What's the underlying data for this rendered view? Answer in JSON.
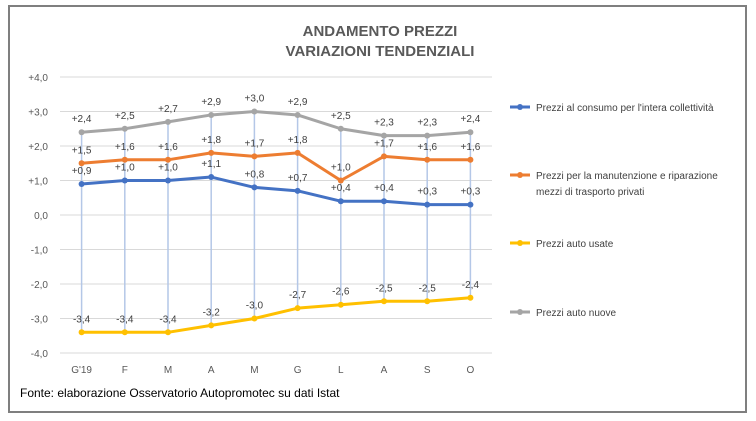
{
  "chart_data": {
    "type": "line",
    "title": [
      "ANDAMENTO PREZZI",
      "VARIAZIONI TENDENZIALI"
    ],
    "categories": [
      "G'19",
      "F",
      "M",
      "A",
      "M",
      "G",
      "L",
      "A",
      "S",
      "O"
    ],
    "ylim": [
      -4,
      4
    ],
    "yticks": [
      "+4,0",
      "+3,0",
      "+2,0",
      "+1,0",
      "0,0",
      "-1,0",
      "-2,0",
      "-3,0",
      "-4,0"
    ],
    "grid": true,
    "legend_position": "right",
    "high_low_lines": true,
    "series": [
      {
        "name": "Prezzi al consumo per l'intera collettività",
        "color": "#4472c4",
        "values": [
          0.9,
          1.0,
          1.0,
          1.1,
          0.8,
          0.7,
          0.4,
          0.4,
          0.3,
          0.3
        ],
        "labels": [
          "+0,9",
          "+1,0",
          "+1,0",
          "+1,1",
          "+0,8",
          "+0,7",
          "+0,4",
          "+0,4",
          "+0,3",
          "+0,3"
        ]
      },
      {
        "name": "Prezzi per la manutenzione e riparazione mezzi di trasporto privati",
        "color": "#ed7d31",
        "values": [
          1.5,
          1.6,
          1.6,
          1.8,
          1.7,
          1.8,
          1.0,
          1.7,
          1.6,
          1.6
        ],
        "labels": [
          "+1,5",
          "+1,6",
          "+1,6",
          "+1,8",
          "+1,7",
          "+1,8",
          "+1,0",
          "+1,7",
          "+1,6",
          "+1,6"
        ]
      },
      {
        "name": "Prezzi auto usate",
        "color": "#ffc000",
        "values": [
          -3.4,
          -3.4,
          -3.4,
          -3.2,
          -3.0,
          -2.7,
          -2.6,
          -2.5,
          -2.5,
          -2.4
        ],
        "labels": [
          "-3,4",
          "-3,4",
          "-3,4",
          "-3,2",
          "-3,0",
          "-2,7",
          "-2,6",
          "-2,5",
          "-2,5",
          "-2,4"
        ]
      },
      {
        "name": "Prezzi auto nuove",
        "color": "#a5a5a5",
        "values": [
          2.4,
          2.5,
          2.7,
          2.9,
          3.0,
          2.9,
          2.5,
          2.3,
          2.3,
          2.4
        ],
        "labels": [
          "+2,4",
          "+2,5",
          "+2,7",
          "+2,9",
          "+3,0",
          "+2,9",
          "+2,5",
          "+2,3",
          "+2,3",
          "+2,4"
        ]
      }
    ],
    "legend_lines": [
      [
        "Prezzi al consumo per l'intera collettività"
      ],
      [
        "Prezzi per la manutenzione e riparazione",
        "mezzi di trasporto privati"
      ],
      [
        "Prezzi auto usate"
      ],
      [
        "Prezzi auto nuove"
      ]
    ]
  },
  "source": "Fonte: elaborazione Osservatorio Autopromotec su dati Istat"
}
